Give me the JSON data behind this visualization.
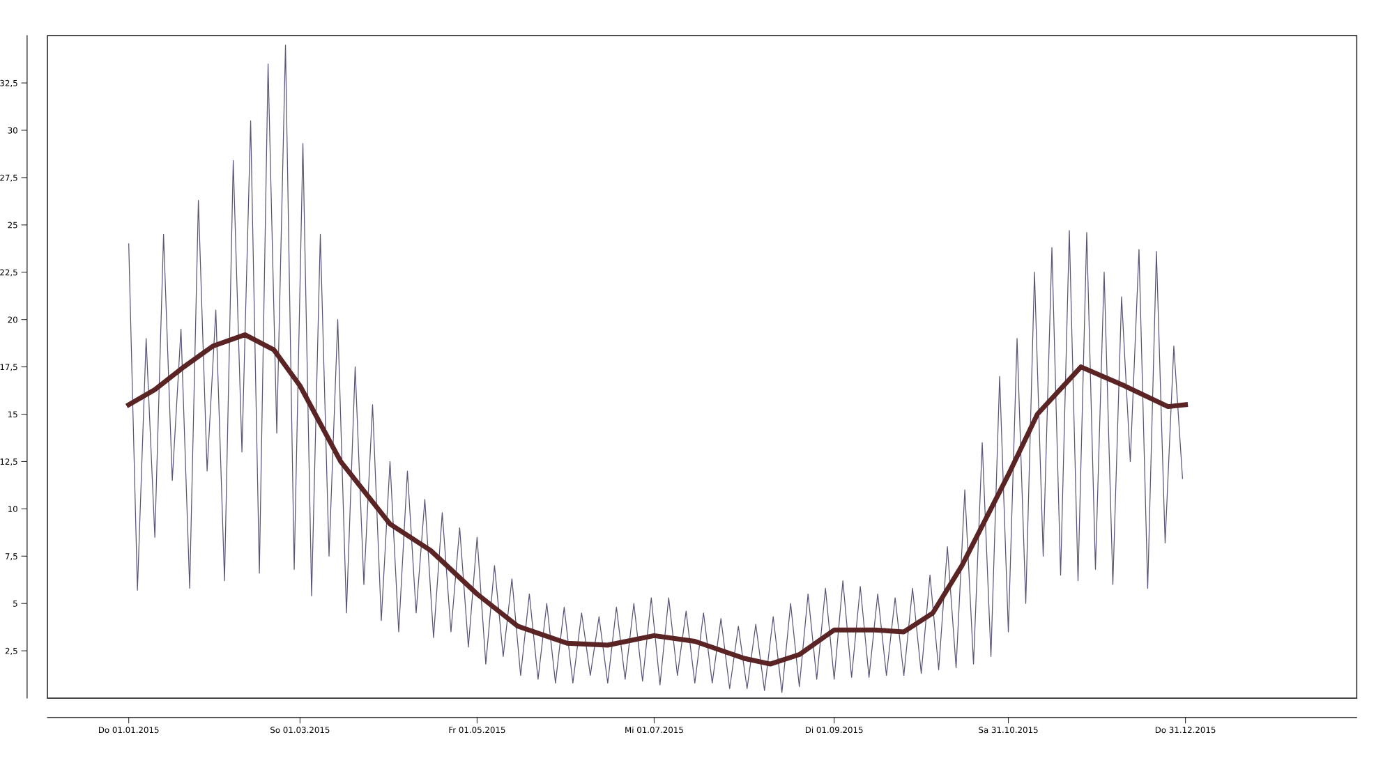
{
  "chart_data": {
    "type": "line",
    "xlim": [
      "2014-12-04",
      "2016-02-28"
    ],
    "xticks": [
      {
        "value": "2015-01-01",
        "label": "Do 01.01.2015"
      },
      {
        "value": "2015-03-01",
        "label": "So 01.03.2015"
      },
      {
        "value": "2015-05-01",
        "label": "Fr 01.05.2015"
      },
      {
        "value": "2015-07-01",
        "label": "Mi 01.07.2015"
      },
      {
        "value": "2015-09-01",
        "label": "Di 01.09.2015"
      },
      {
        "value": "2015-10-31",
        "label": "Sa 31.10.2015"
      },
      {
        "value": "2015-12-31",
        "label": "Do 31.12.2015"
      }
    ],
    "ylim": [
      0,
      35
    ],
    "yticks": [
      {
        "value": 2.5,
        "label": "2,5"
      },
      5,
      {
        "value": 7.5,
        "label": "7,5"
      },
      10,
      {
        "value": 12.5,
        "label": "12,5"
      },
      15,
      {
        "value": 17.5,
        "label": "17,5"
      },
      20,
      {
        "value": 22.5,
        "label": "22,5"
      },
      25,
      {
        "value": 27.5,
        "label": "27,5"
      },
      30,
      {
        "value": 32.5,
        "label": "32,5"
      }
    ],
    "grid": false,
    "legend": false,
    "marker": "none",
    "line_style": "solid",
    "series": [
      {
        "color": "#5a5478",
        "x": [
          "2015-01-01",
          "2015-01-04",
          "2015-01-07",
          "2015-01-10",
          "2015-01-13",
          "2015-01-16",
          "2015-01-19",
          "2015-01-22",
          "2015-01-25",
          "2015-01-28",
          "2015-01-31",
          "2015-02-03",
          "2015-02-06",
          "2015-02-09",
          "2015-02-12",
          "2015-02-15",
          "2015-02-18",
          "2015-02-21",
          "2015-02-24",
          "2015-02-27",
          "2015-03-02",
          "2015-03-05",
          "2015-03-08",
          "2015-03-11",
          "2015-03-14",
          "2015-03-17",
          "2015-03-20",
          "2015-03-23",
          "2015-03-26",
          "2015-03-29",
          "2015-04-01",
          "2015-04-04",
          "2015-04-07",
          "2015-04-10",
          "2015-04-13",
          "2015-04-16",
          "2015-04-19",
          "2015-04-22",
          "2015-04-25",
          "2015-04-28",
          "2015-05-01",
          "2015-05-04",
          "2015-05-07",
          "2015-05-10",
          "2015-05-13",
          "2015-05-16",
          "2015-05-19",
          "2015-05-22",
          "2015-05-25",
          "2015-05-28",
          "2015-05-31",
          "2015-06-03",
          "2015-06-06",
          "2015-06-09",
          "2015-06-12",
          "2015-06-15",
          "2015-06-18",
          "2015-06-21",
          "2015-06-24",
          "2015-06-27",
          "2015-06-30",
          "2015-07-03",
          "2015-07-06",
          "2015-07-09",
          "2015-07-12",
          "2015-07-15",
          "2015-07-18",
          "2015-07-21",
          "2015-07-24",
          "2015-07-27",
          "2015-07-30",
          "2015-08-02",
          "2015-08-05",
          "2015-08-08",
          "2015-08-11",
          "2015-08-14",
          "2015-08-17",
          "2015-08-20",
          "2015-08-23",
          "2015-08-26",
          "2015-08-29",
          "2015-09-01",
          "2015-09-04",
          "2015-09-07",
          "2015-09-10",
          "2015-09-13",
          "2015-09-16",
          "2015-09-19",
          "2015-09-22",
          "2015-09-25",
          "2015-09-28",
          "2015-10-01",
          "2015-10-04",
          "2015-10-07",
          "2015-10-10",
          "2015-10-13",
          "2015-10-16",
          "2015-10-19",
          "2015-10-22",
          "2015-10-25",
          "2015-10-28",
          "2015-10-31",
          "2015-11-03",
          "2015-11-06",
          "2015-11-09",
          "2015-11-12",
          "2015-11-15",
          "2015-11-18",
          "2015-11-21",
          "2015-11-24",
          "2015-11-27",
          "2015-11-30",
          "2015-12-03",
          "2015-12-06",
          "2015-12-09",
          "2015-12-12",
          "2015-12-15",
          "2015-12-18",
          "2015-12-21",
          "2015-12-24",
          "2015-12-27",
          "2015-12-30"
        ],
        "values": [
          24,
          5.7,
          19,
          8.5,
          24.5,
          11.5,
          19.5,
          5.8,
          26.3,
          12,
          20.5,
          6.2,
          28.4,
          13,
          30.5,
          6.6,
          33.5,
          14,
          34.5,
          6.8,
          29.3,
          5.4,
          24.5,
          7.5,
          20,
          4.5,
          17.5,
          6,
          15.5,
          4.1,
          12.5,
          3.5,
          12,
          4.5,
          10.5,
          3.2,
          9.8,
          3.5,
          9,
          2.7,
          8.5,
          1.8,
          7,
          2.2,
          6.3,
          1.2,
          5.5,
          1.0,
          5,
          0.8,
          4.8,
          0.8,
          4.5,
          1.2,
          4.3,
          0.8,
          4.8,
          1.0,
          5.0,
          0.9,
          5.3,
          0.7,
          5.3,
          1.2,
          4.6,
          0.8,
          4.5,
          0.8,
          4.2,
          0.5,
          3.8,
          0.5,
          3.9,
          0.4,
          4.3,
          0.3,
          5.0,
          0.6,
          5.5,
          1.0,
          5.8,
          1.0,
          6.2,
          1.1,
          5.9,
          1.1,
          5.5,
          1.2,
          5.3,
          1.2,
          5.8,
          1.3,
          6.5,
          1.5,
          8,
          1.6,
          11,
          1.8,
          13.5,
          2.2,
          17,
          3.5,
          19,
          5,
          22.5,
          7.5,
          23.8,
          6.5,
          24.7,
          6.2,
          24.6,
          6.8,
          22.5,
          6,
          21.2,
          12.5,
          23.7,
          5.8,
          23.6,
          8.2,
          18.6,
          11.6
        ]
      },
      {
        "color": "#5b2424",
        "x": [
          "2015-01-01",
          "2015-01-10",
          "2015-01-20",
          "2015-01-30",
          "2015-02-10",
          "2015-02-20",
          "2015-03-01",
          "2015-03-15",
          "2015-04-01",
          "2015-04-15",
          "2015-05-01",
          "2015-05-15",
          "2015-06-01",
          "2015-06-15",
          "2015-07-01",
          "2015-07-15",
          "2015-08-01",
          "2015-08-10",
          "2015-08-20",
          "2015-09-01",
          "2015-09-15",
          "2015-09-25",
          "2015-10-05",
          "2015-10-15",
          "2015-10-31",
          "2015-11-10",
          "2015-11-25",
          "2015-12-10",
          "2015-12-25",
          "2015-12-31"
        ],
        "values": [
          15.5,
          16.3,
          17.5,
          18.6,
          19.2,
          18.4,
          16.5,
          12.5,
          9.2,
          7.8,
          5.5,
          3.8,
          2.9,
          2.8,
          3.3,
          3.0,
          2.1,
          1.8,
          2.3,
          3.6,
          3.6,
          3.5,
          4.5,
          7,
          11.8,
          15,
          17.5,
          16.5,
          15.4,
          15.5
        ]
      }
    ]
  }
}
